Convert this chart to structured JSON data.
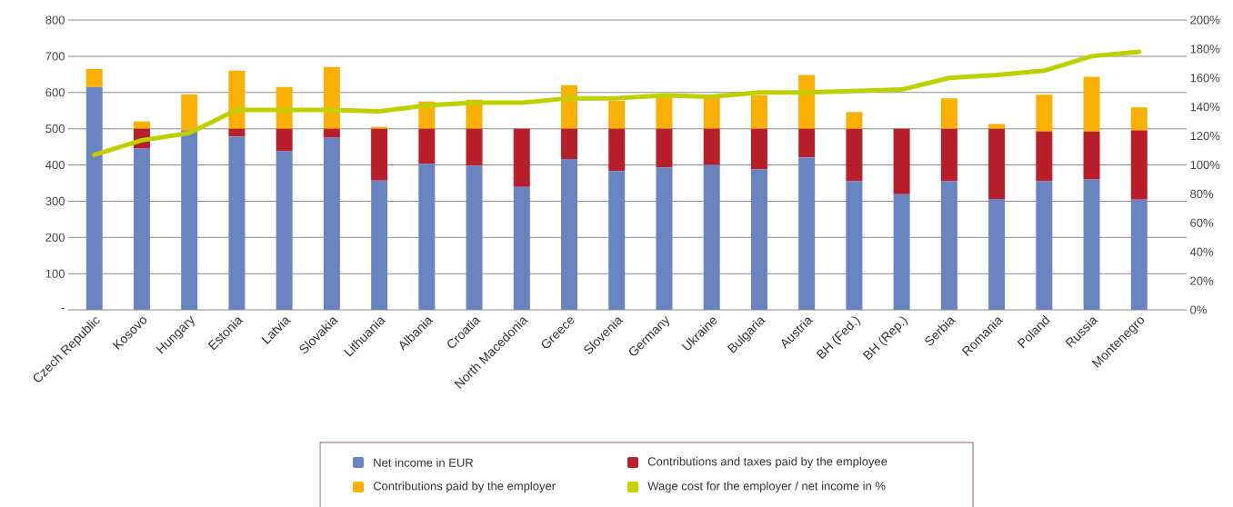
{
  "chart_data": {
    "type": "bar",
    "stacked": true,
    "categories": [
      "Czech Republic",
      "Kosovo",
      "Hungary",
      "Estonia",
      "Latvia",
      "Slovakia",
      "Lithuania",
      "Albania",
      "Croatia",
      "North Macedonia",
      "Greece",
      "Slovenia",
      "Germany",
      "Ukraine",
      "Bulgaria",
      "Austria",
      "BH (Fed.)",
      "BH (Rep.)",
      "Serbia",
      "Romania",
      "Poland",
      "Russia",
      "Montenegro"
    ],
    "series": [
      {
        "name": "Net income in EUR",
        "color": "#6a84c2",
        "values": [
          615,
          445,
          495,
          478,
          438,
          475,
          357,
          403,
          398,
          339,
          416,
          383,
          393,
          400,
          388,
          421,
          355,
          319,
          355,
          306,
          355,
          360,
          304
        ]
      },
      {
        "name": "Contributions and taxes paid by the employee",
        "color": "#b81f2b",
        "values": [
          0,
          55,
          0,
          22,
          62,
          25,
          143,
          97,
          102,
          161,
          84,
          117,
          107,
          100,
          112,
          79,
          145,
          181,
          145,
          194,
          137,
          132,
          191
        ]
      },
      {
        "name": "Contributions paid by the employer",
        "color": "#f9b000",
        "values": [
          50,
          20,
          100,
          160,
          115,
          170,
          5,
          75,
          80,
          0,
          120,
          77,
          87,
          89,
          92,
          148,
          46,
          0,
          84,
          13,
          102,
          151,
          64
        ]
      },
      {
        "name": "Wage cost for the employer / net income in %",
        "color": "#bfd000",
        "type": "line",
        "axis": "y2",
        "values": [
          107,
          117,
          122,
          138,
          138,
          138,
          137,
          141,
          143,
          143,
          146,
          146,
          148,
          147,
          150,
          150,
          151,
          152,
          160,
          162,
          165,
          175,
          178
        ]
      }
    ],
    "ylim": [
      0,
      800
    ],
    "yticks": [
      {
        "value": 0,
        "label": "-"
      },
      100,
      200,
      300,
      400,
      500,
      600,
      700,
      800
    ],
    "y2lim": [
      0,
      200
    ],
    "y2ticks": [
      {
        "value": 0,
        "label": "0%"
      },
      {
        "value": 20,
        "label": "20%"
      },
      {
        "value": 40,
        "label": "40%"
      },
      {
        "value": 60,
        "label": "60%"
      },
      {
        "value": 80,
        "label": "80%"
      },
      {
        "value": 100,
        "label": "100%"
      },
      {
        "value": 120,
        "label": "120%"
      },
      {
        "value": 140,
        "label": "140%"
      },
      {
        "value": 160,
        "label": "160%"
      },
      {
        "value": 180,
        "label": "180%"
      },
      {
        "value": 200,
        "label": "200%"
      }
    ],
    "grid": "y",
    "legend": "bottom",
    "marker": "none",
    "line_style": "solid"
  }
}
